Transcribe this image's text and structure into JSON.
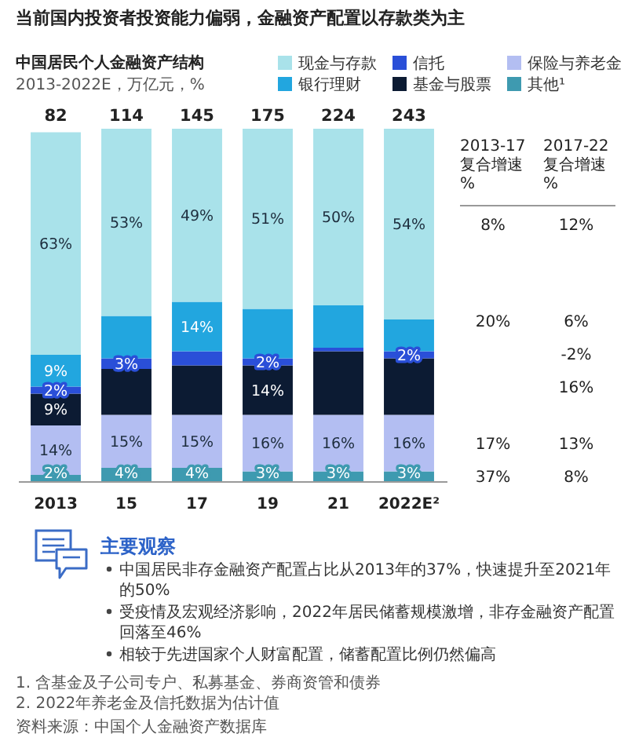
{
  "chart_data": [
    {
      "type": "bar",
      "title": "中国居民个人金融资产结构",
      "subtitle": "2013-2022E，万亿元，%",
      "categories": [
        "2013",
        "15",
        "17",
        "19",
        "21",
        "2022E²"
      ],
      "stacked": true,
      "ylim": [
        0,
        100
      ],
      "tick_labels": "x",
      "legend": "top right",
      "series": [
        {
          "name": "其他¹",
          "color": "#3e9ab0",
          "values": [
            2,
            4,
            4,
            3,
            3,
            3
          ],
          "value_labels": [
            "2%",
            "4%",
            "4%",
            "3%",
            "3%",
            "3%"
          ]
        },
        {
          "name": "保险与养老金",
          "color": "#b3bef2",
          "values": [
            14,
            15,
            15,
            16,
            16,
            16
          ],
          "value_labels": [
            "14%",
            "15%",
            "15%",
            "16%",
            "16%",
            "16%"
          ]
        },
        {
          "name": "基金与股票",
          "color": "#0c1b33",
          "values": [
            9,
            13,
            14,
            14,
            18,
            16
          ],
          "value_labels": [
            "9%",
            null,
            null,
            "14%",
            null,
            null
          ]
        },
        {
          "name": "信托",
          "color": "#2a4fd8",
          "values": [
            2,
            3,
            4,
            2,
            1,
            2
          ],
          "value_labels": [
            "2%",
            "3%",
            null,
            "2%",
            null,
            "2%"
          ]
        },
        {
          "name": "银行理财",
          "color": "#22a6df",
          "values": [
            9,
            12,
            14,
            14,
            12,
            9
          ],
          "value_labels": [
            "9%",
            null,
            "14%",
            null,
            null,
            null
          ]
        },
        {
          "name": "现金与存款",
          "color": "#a9e2ea",
          "values": [
            63,
            53,
            49,
            51,
            50,
            54
          ],
          "value_labels": [
            "63%",
            "53%",
            "49%",
            "51%",
            "50%",
            "54%"
          ]
        }
      ],
      "annotations": [
        "当前国内投资者投资能力偏弱，金融资产配置以存款类为主",
        {
          "text": "82",
          "x": "2013",
          "y": 100
        },
        {
          "text": "114",
          "x": "15",
          "y": 100
        },
        {
          "text": "145",
          "x": "17",
          "y": 100
        },
        {
          "text": "175",
          "x": "19",
          "y": 100
        },
        {
          "text": "224",
          "x": "21",
          "y": 100
        },
        {
          "text": "243",
          "x": "2022E²",
          "y": 100
        },
        "主要观察",
        "中国居民非存金融资产配置占比从2013年的37%，快速提升至2021年的50%",
        "受疫情及宏观经济影响，2022年居民储蓄规模激增，非存金融资产配置回落至46%",
        "相较于先进国家个人财富配置，储蓄配置比例仍然偏高",
        "1. 含基金及子公司专户、私募基金、券商资管和债券",
        "2. 2022年养老金及信托数据为估计值",
        "资料来源：中国个人金融资产数据库"
      ]
    },
    {
      "type": "other",
      "categories": [
        "2013-17 复合增速 %",
        "2017-22 复合增速 %"
      ],
      "cell_labels": [
        [
          "8%",
          "12%"
        ],
        [
          "20%",
          "6%"
        ],
        [
          null,
          "-2%"
        ],
        [
          null,
          "16%"
        ],
        [
          "17%",
          "13%"
        ],
        [
          "37%",
          "8%"
        ]
      ]
    }
  ]
}
